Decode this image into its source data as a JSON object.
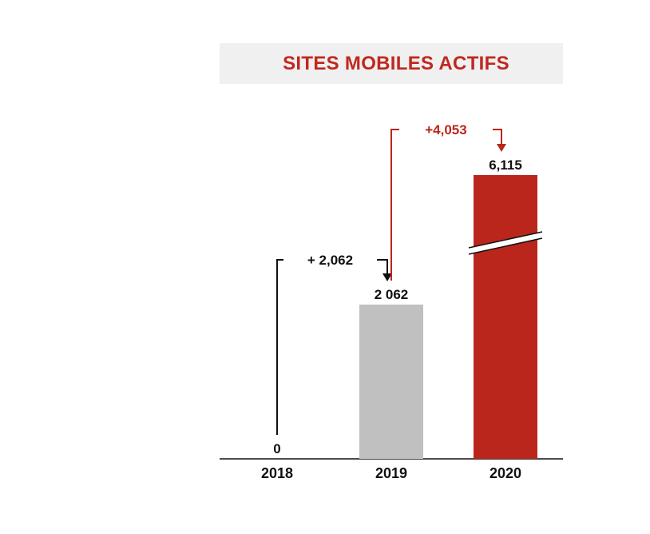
{
  "chart_data": {
    "type": "bar",
    "title": "SITES MOBILES ACTIFS",
    "categories": [
      "2018",
      "2019",
      "2020"
    ],
    "values": [
      0,
      2062,
      6115
    ],
    "value_labels": [
      "0",
      "2 062",
      "6,115"
    ],
    "colors": [
      "#c0c0c0",
      "#c0c0c0",
      "#bb261c"
    ],
    "axis_break": {
      "series_index": 2
    },
    "annotations": [
      {
        "text": "+ 2,062",
        "from": 0,
        "to": 1,
        "color": "#111111"
      },
      {
        "text": "+4,053",
        "from": 1,
        "to": 2,
        "color": "#bb261c"
      }
    ]
  }
}
